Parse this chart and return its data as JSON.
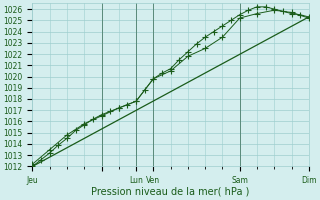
{
  "xlabel": "Pression niveau de la mer( hPa )",
  "bg_color": "#d4eeee",
  "grid_color": "#9ecece",
  "line_color": "#1a5c1a",
  "xlim": [
    0,
    96
  ],
  "ylim": [
    1012,
    1027
  ],
  "yticks": [
    1012,
    1013,
    1014,
    1015,
    1016,
    1017,
    1018,
    1019,
    1020,
    1021,
    1022,
    1023,
    1024,
    1025,
    1026
  ],
  "xtick_positions": [
    0,
    24,
    36,
    42,
    72,
    96
  ],
  "xtick_labels": [
    "Jeu",
    "",
    "Lun",
    "Ven",
    "Sam",
    "Dim"
  ],
  "vline_positions": [
    24,
    36,
    42,
    72,
    96
  ],
  "series1_x": [
    0,
    3,
    6,
    9,
    12,
    15,
    18,
    21,
    24,
    27,
    30,
    33,
    36,
    39,
    42,
    45,
    48,
    51,
    54,
    57,
    60,
    63,
    66,
    69,
    72,
    75,
    78,
    81,
    84,
    87,
    90,
    93,
    96
  ],
  "series1_y": [
    1012.0,
    1012.6,
    1013.2,
    1013.9,
    1014.5,
    1015.2,
    1015.7,
    1016.2,
    1016.6,
    1016.9,
    1017.2,
    1017.5,
    1017.8,
    1018.8,
    1019.8,
    1020.3,
    1020.7,
    1021.5,
    1022.2,
    1022.9,
    1023.5,
    1024.0,
    1024.5,
    1025.0,
    1025.5,
    1025.9,
    1026.2,
    1026.2,
    1026.0,
    1025.8,
    1025.6,
    1025.5,
    1025.3
  ],
  "series2_x": [
    0,
    6,
    12,
    18,
    24,
    30,
    36,
    42,
    48,
    54,
    60,
    66,
    72,
    78,
    84,
    90,
    96
  ],
  "series2_y": [
    1012.2,
    1013.5,
    1014.8,
    1015.8,
    1016.5,
    1017.2,
    1017.8,
    1019.8,
    1020.5,
    1021.8,
    1022.5,
    1023.5,
    1025.2,
    1025.6,
    1025.9,
    1025.7,
    1025.2
  ],
  "series3_x": [
    0,
    96
  ],
  "series3_y": [
    1012.0,
    1025.3
  ],
  "marker": "+",
  "markersize": 4,
  "tick_fontsize": 5.5,
  "xlabel_fontsize": 7
}
